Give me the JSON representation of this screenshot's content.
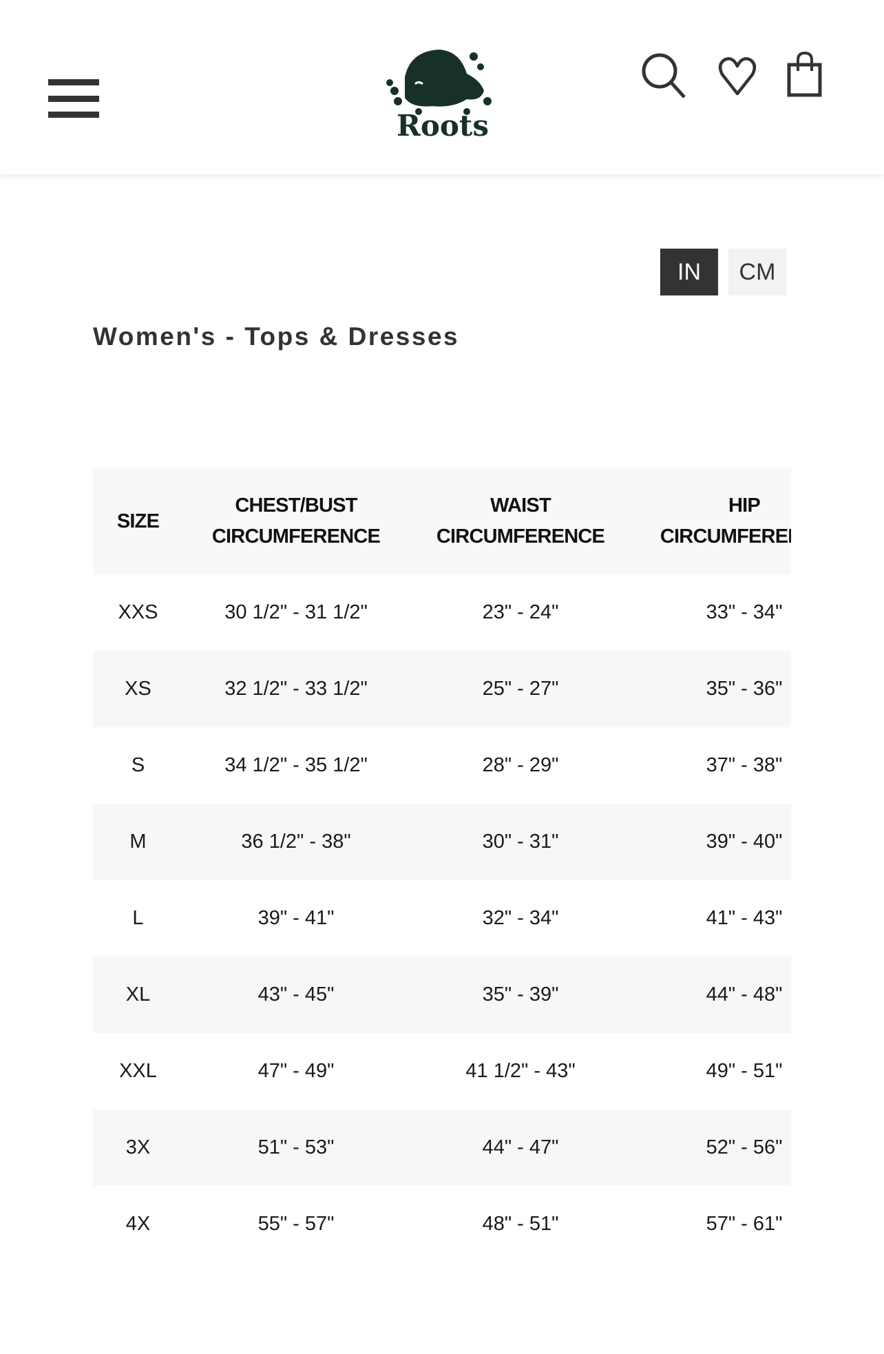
{
  "header": {
    "brand": "Roots",
    "icons": [
      "menu-icon",
      "search-icon",
      "heart-icon",
      "shopping-bag-icon"
    ]
  },
  "units": {
    "options": [
      "IN",
      "CM"
    ],
    "selected": "IN"
  },
  "title": "Women's - Tops & Dresses",
  "table": {
    "columns": [
      {
        "line1": "SIZE",
        "line2": ""
      },
      {
        "line1": "CHEST/BUST",
        "line2": "CIRCUMFERENCE"
      },
      {
        "line1": "WAIST",
        "line2": "CIRCUMFERENCE"
      },
      {
        "line1": "HIP",
        "line2": "CIRCUMFERENCE"
      }
    ],
    "rows": [
      [
        "XXS",
        "30 1/2\" - 31 1/2\"",
        "23\" - 24\"",
        "33\" - 34\""
      ],
      [
        "XS",
        "32 1/2\" - 33 1/2\"",
        "25\" - 27\"",
        "35\" - 36\""
      ],
      [
        "S",
        "34 1/2\" - 35 1/2\"",
        "28\" - 29\"",
        "37\" - 38\""
      ],
      [
        "M",
        "36 1/2\" - 38\"",
        "30\" - 31\"",
        "39\" - 40\""
      ],
      [
        "L",
        "39\" - 41\"",
        "32\" - 34\"",
        "41\" - 43\""
      ],
      [
        "XL",
        "43\" - 45\"",
        "35\" - 39\"",
        "44\" - 48\""
      ],
      [
        "XXL",
        "47\" - 49\"",
        "41 1/2\" - 43\"",
        "49\" - 51\""
      ],
      [
        "3X",
        "51\" - 53\"",
        "44\" - 47\"",
        "52\" - 56\""
      ],
      [
        "4X",
        "55\" - 57\"",
        "48\" - 51\"",
        "57\" - 61\""
      ]
    ]
  },
  "colors": {
    "brand": "#17302a",
    "dark": "#333333",
    "stripe": "#f7f7f7"
  }
}
